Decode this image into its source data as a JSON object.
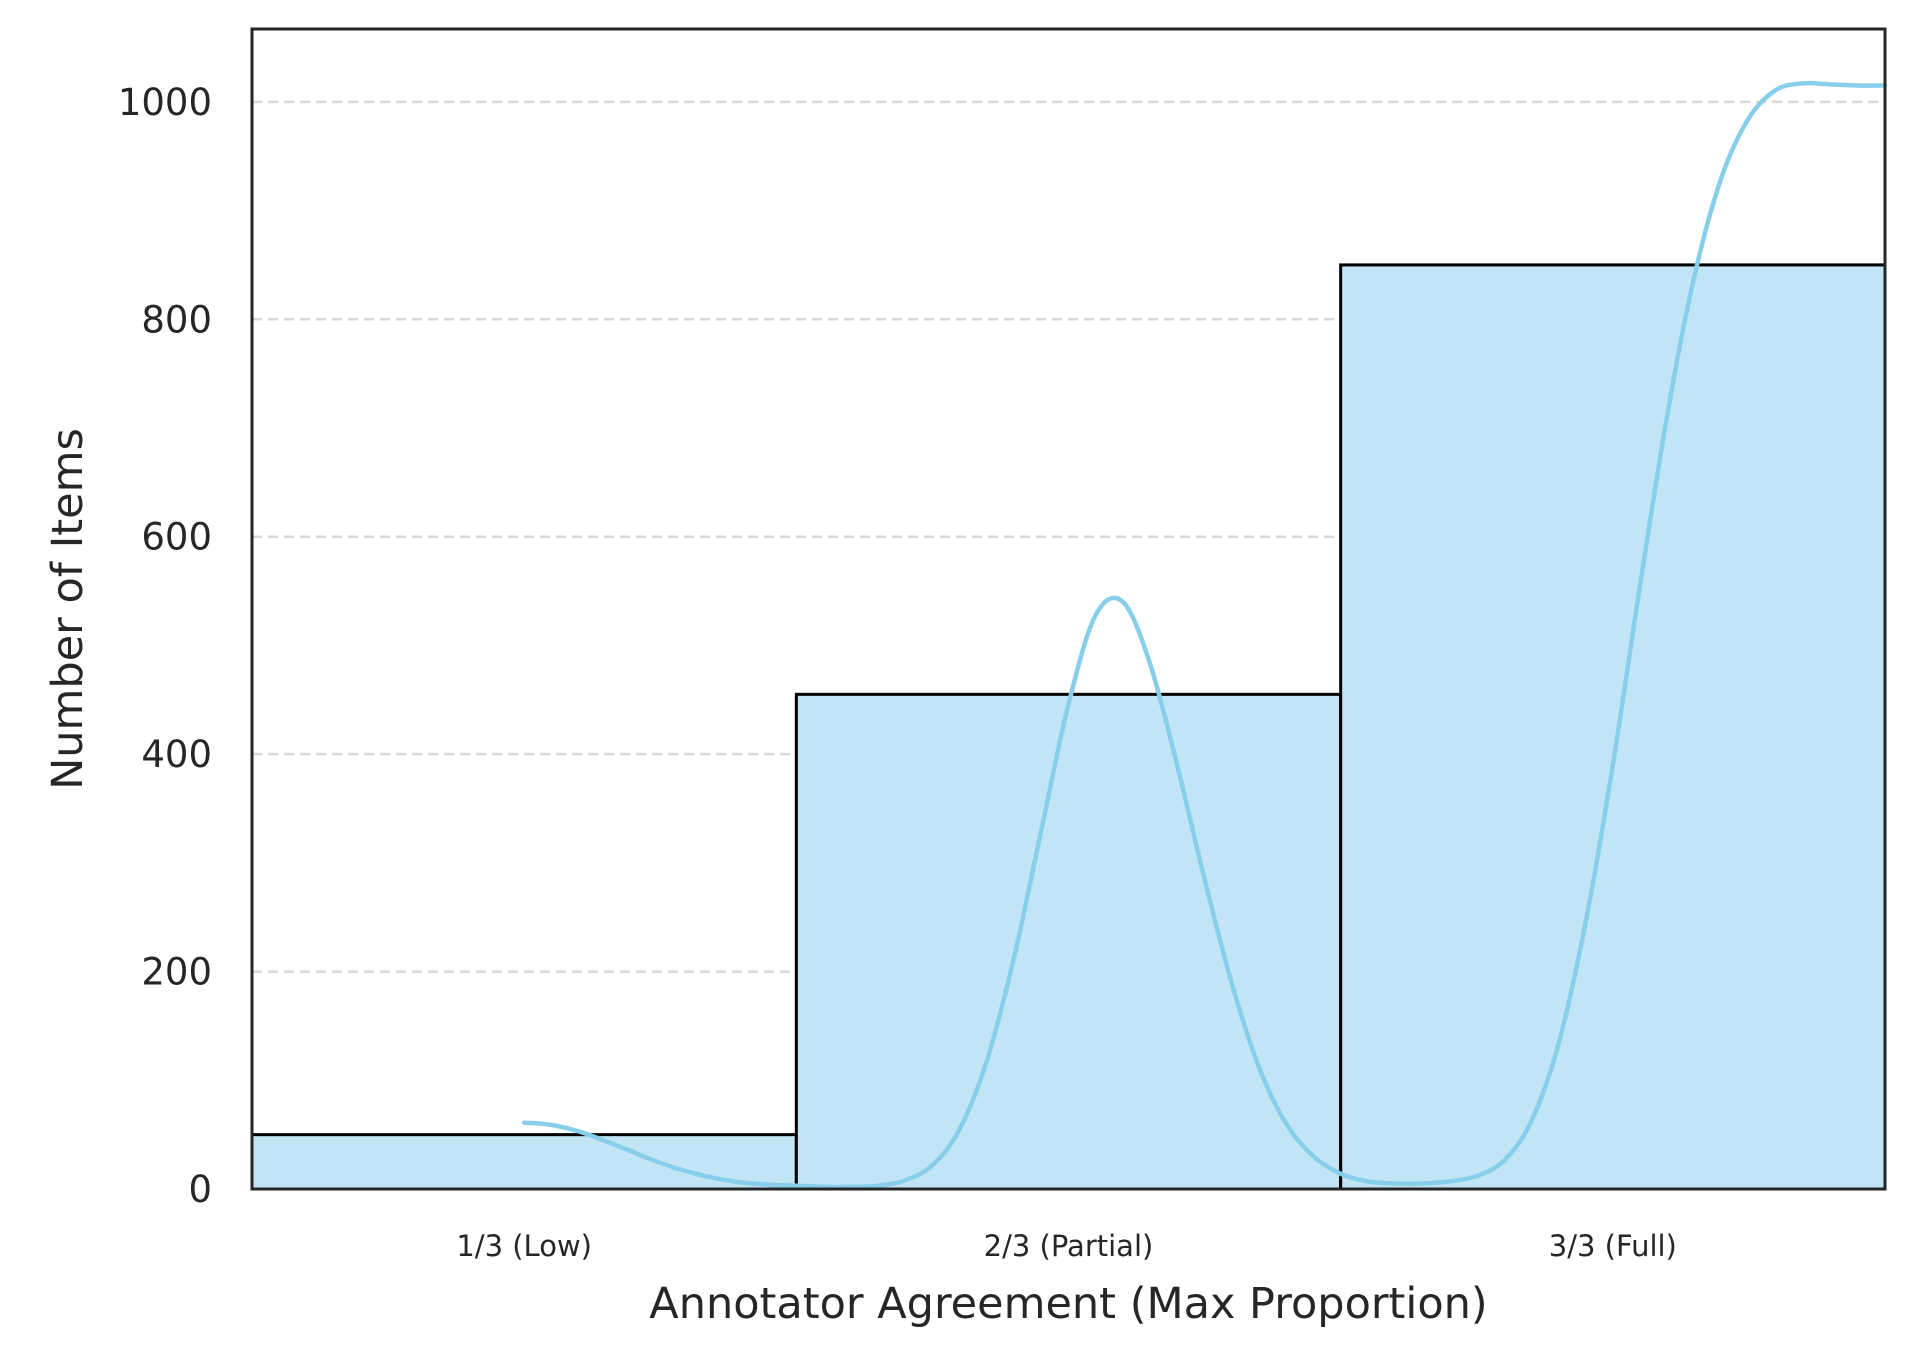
{
  "chart_data": {
    "type": "bar",
    "title": "",
    "xlabel": "Annotator Agreement (Max Proportion)",
    "ylabel": "Number of Items",
    "categories": [
      "1/3 (Low)",
      "2/3 (Partial)",
      "3/3 (Full)"
    ],
    "values": [
      50,
      455,
      850
    ],
    "ylim": [
      0,
      1067
    ],
    "yticks": [
      0,
      200,
      400,
      600,
      800,
      1000
    ],
    "ytick_labels": [
      "0",
      "200",
      "400",
      "600",
      "800",
      "1000"
    ],
    "grid": {
      "y": true,
      "x": false,
      "style": "dashed"
    },
    "kde_curve": {
      "x": [
        0.0,
        0.05,
        0.1,
        0.15,
        0.2,
        0.25,
        0.3,
        0.35,
        0.4,
        0.45,
        0.5,
        0.55,
        0.6,
        0.65,
        0.7,
        0.75,
        0.8,
        0.85,
        0.9,
        0.95,
        1.0,
        1.05,
        1.1,
        1.15,
        1.2,
        1.25,
        1.3,
        1.35,
        1.4,
        1.45,
        1.5,
        1.55,
        1.6,
        1.65,
        1.7,
        1.75,
        1.8,
        1.85,
        1.9,
        1.95,
        2.0,
        2.05,
        2.1,
        2.15,
        2.2,
        2.25,
        2.3,
        2.35,
        2.4,
        2.45,
        2.5
      ],
      "y": [
        61,
        59,
        53,
        44,
        34,
        24,
        16,
        10,
        6,
        4,
        3,
        2,
        2,
        3,
        8,
        22,
        55,
        118,
        213,
        330,
        446,
        528,
        540,
        483,
        389,
        285,
        189,
        112,
        60,
        30,
        14,
        7,
        5,
        5,
        7,
        12,
        26,
        62,
        133,
        245,
        390,
        555,
        712,
        840,
        931,
        985,
        1011,
        1017,
        1016,
        1015,
        1015
      ]
    },
    "colors": {
      "bar_fill": "#c2e5f5",
      "bar_edge": "#000000",
      "kde_line": "#87ceeb",
      "grid": "#d9d9d9",
      "axes": "#262626",
      "text": "#262626"
    }
  }
}
